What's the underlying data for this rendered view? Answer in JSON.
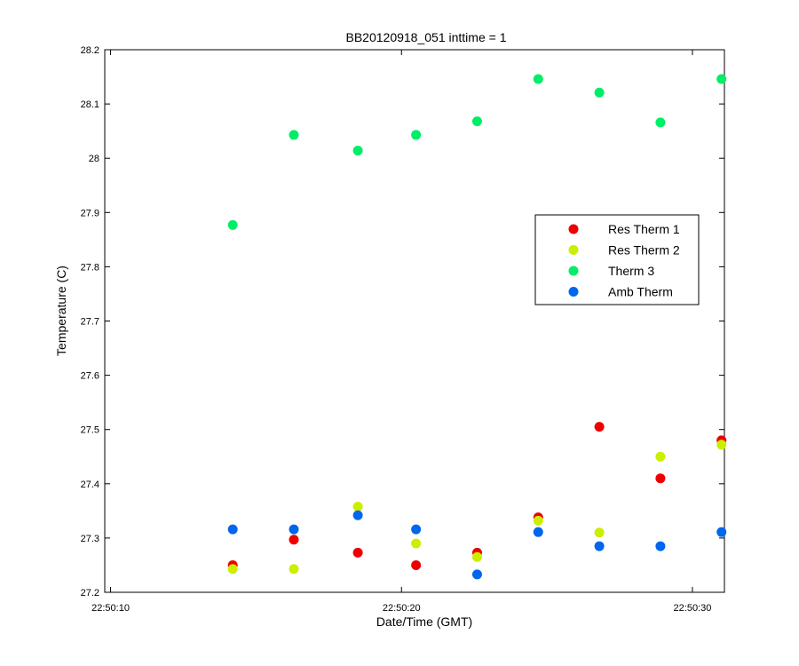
{
  "chart_data": {
    "type": "scatter",
    "title": "BB20120918_051 inttime = 1",
    "xlabel": "Date/Time (GMT)",
    "ylabel": "Temperature (C)",
    "xlim": [
      "22:50:09.8",
      "22:50:31.1"
    ],
    "ylim": [
      27.2,
      28.2
    ],
    "x_ticks": [
      "22:50:10",
      "22:50:20",
      "22:50:30"
    ],
    "y_ticks": [
      "27.2",
      "27.3",
      "27.4",
      "27.5",
      "27.6",
      "27.7",
      "27.8",
      "27.9",
      "28",
      "28.1",
      "28.2"
    ],
    "grid": false,
    "legend_position": "right",
    "x": [
      "22:50:14.2",
      "22:50:16.3",
      "22:50:18.5",
      "22:50:20.5",
      "22:50:22.6",
      "22:50:24.7",
      "22:50:26.8",
      "22:50:28.9",
      "22:50:31.0"
    ],
    "series": [
      {
        "name": "Res Therm 1",
        "color": "#ee0000",
        "values": [
          27.25,
          27.297,
          27.273,
          27.25,
          27.273,
          27.338,
          27.505,
          27.41,
          27.48
        ]
      },
      {
        "name": "Res Therm 2",
        "color": "#ccee00",
        "values": [
          27.243,
          27.243,
          27.358,
          27.29,
          27.265,
          27.332,
          27.31,
          27.45,
          27.472
        ]
      },
      {
        "name": "Therm 3",
        "color": "#00ee66",
        "values": [
          27.877,
          28.043,
          28.014,
          28.043,
          28.068,
          28.146,
          28.121,
          28.066,
          28.146
        ]
      },
      {
        "name": "Amb Therm",
        "color": "#0066ee",
        "values": [
          27.316,
          27.316,
          27.342,
          27.316,
          27.233,
          27.311,
          27.285,
          27.285,
          27.311
        ]
      }
    ]
  }
}
